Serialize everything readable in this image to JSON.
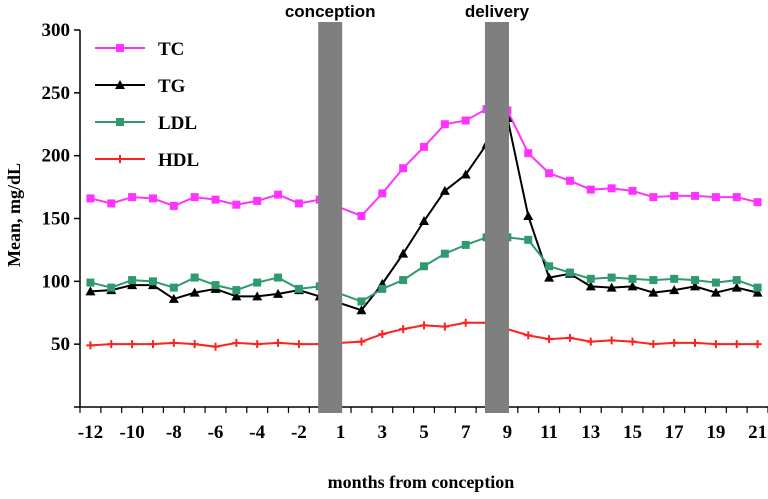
{
  "chart_data": {
    "type": "line",
    "xlabel": "months from conception",
    "ylabel": "Mean, mg/dL",
    "ylim": [
      0,
      300
    ],
    "yticks": [
      50,
      100,
      150,
      200,
      250,
      300
    ],
    "x": [
      -12,
      -11,
      -10,
      -9,
      -8,
      -7,
      -6,
      -5,
      -4,
      -3,
      -2,
      -1,
      1,
      2,
      3,
      4,
      5,
      6,
      7,
      8,
      9,
      10,
      11,
      12,
      13,
      14,
      15,
      16,
      17,
      18,
      19,
      20,
      21
    ],
    "xtick_labels": [
      "-12",
      "-10",
      "-8",
      "-6",
      "-4",
      "-2",
      "1",
      "3",
      "5",
      "7",
      "9",
      "11",
      "13",
      "15",
      "17",
      "19",
      "21"
    ],
    "grid": false,
    "legend_position": "top-left",
    "events": [
      {
        "label": "conception",
        "between": [
          -1,
          1
        ]
      },
      {
        "label": "delivery",
        "between": [
          8,
          9
        ]
      }
    ],
    "series": [
      {
        "name": "TC",
        "color": "#ff33ff",
        "marker": "square",
        "values": [
          166,
          162,
          167,
          166,
          160,
          167,
          165,
          161,
          164,
          169,
          162,
          165,
          null,
          152,
          170,
          190,
          207,
          225,
          228,
          237,
          236,
          202,
          186,
          180,
          173,
          174,
          172,
          167,
          168,
          168,
          167,
          167,
          163
        ]
      },
      {
        "name": "TG",
        "color": "#000000",
        "marker": "triangle",
        "values": [
          92,
          93,
          97,
          97,
          86,
          91,
          94,
          88,
          88,
          90,
          93,
          88,
          null,
          77,
          98,
          122,
          148,
          172,
          185,
          209,
          230,
          152,
          103,
          106,
          96,
          95,
          96,
          91,
          93,
          96,
          91,
          95,
          91
        ]
      },
      {
        "name": "LDL",
        "color": "#2e9a6e",
        "marker": "square",
        "values": [
          99,
          95,
          101,
          100,
          95,
          103,
          97,
          93,
          99,
          103,
          94,
          96,
          null,
          84,
          94,
          101,
          112,
          122,
          129,
          135,
          135,
          133,
          112,
          107,
          102,
          103,
          102,
          101,
          102,
          101,
          99,
          101,
          95
        ]
      },
      {
        "name": "HDL",
        "color": "#ff2020",
        "marker": "cross",
        "values": [
          49,
          50,
          50,
          50,
          51,
          50,
          48,
          51,
          50,
          51,
          50,
          50,
          null,
          52,
          58,
          62,
          65,
          64,
          67,
          67,
          null,
          57,
          54,
          55,
          52,
          53,
          52,
          50,
          51,
          51,
          50,
          50,
          50
        ]
      }
    ]
  }
}
